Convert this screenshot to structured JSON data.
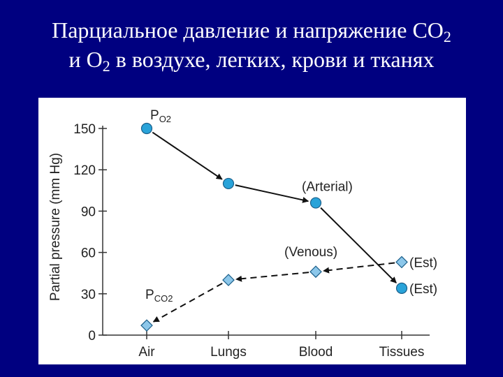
{
  "slide": {
    "title_line1": "Парциальное давление и напряжение CO",
    "title_line1_sub": "2",
    "title_line2_a": "и O",
    "title_line2_sub": "2",
    "title_line2_b": " в воздухе, легких, крови и тканях"
  },
  "chart_data": {
    "type": "line",
    "ylabel": "Partial pressure (mm Hg)",
    "xlabel": "",
    "categories": [
      "Air",
      "Lungs",
      "Blood",
      "Tissues"
    ],
    "ylim": [
      0,
      150
    ],
    "yticks": [
      0,
      30,
      60,
      90,
      120,
      150
    ],
    "grid": false,
    "legend": "none",
    "series": [
      {
        "name": "PO2",
        "label_main": "P",
        "label_sub": "O2",
        "style": "solid",
        "color": "#29a3d9",
        "values": [
          150,
          110,
          96,
          34
        ],
        "annotations": [
          "",
          "",
          "(Arterial)",
          "(Est)"
        ]
      },
      {
        "name": "PCO2",
        "label_main": "P",
        "label_sub": "CO2",
        "style": "dashed",
        "color": "#8cc7ea",
        "values": [
          7,
          40,
          46,
          53
        ],
        "annotations": [
          "",
          "",
          "(Venous)",
          "(Est)"
        ]
      }
    ]
  }
}
